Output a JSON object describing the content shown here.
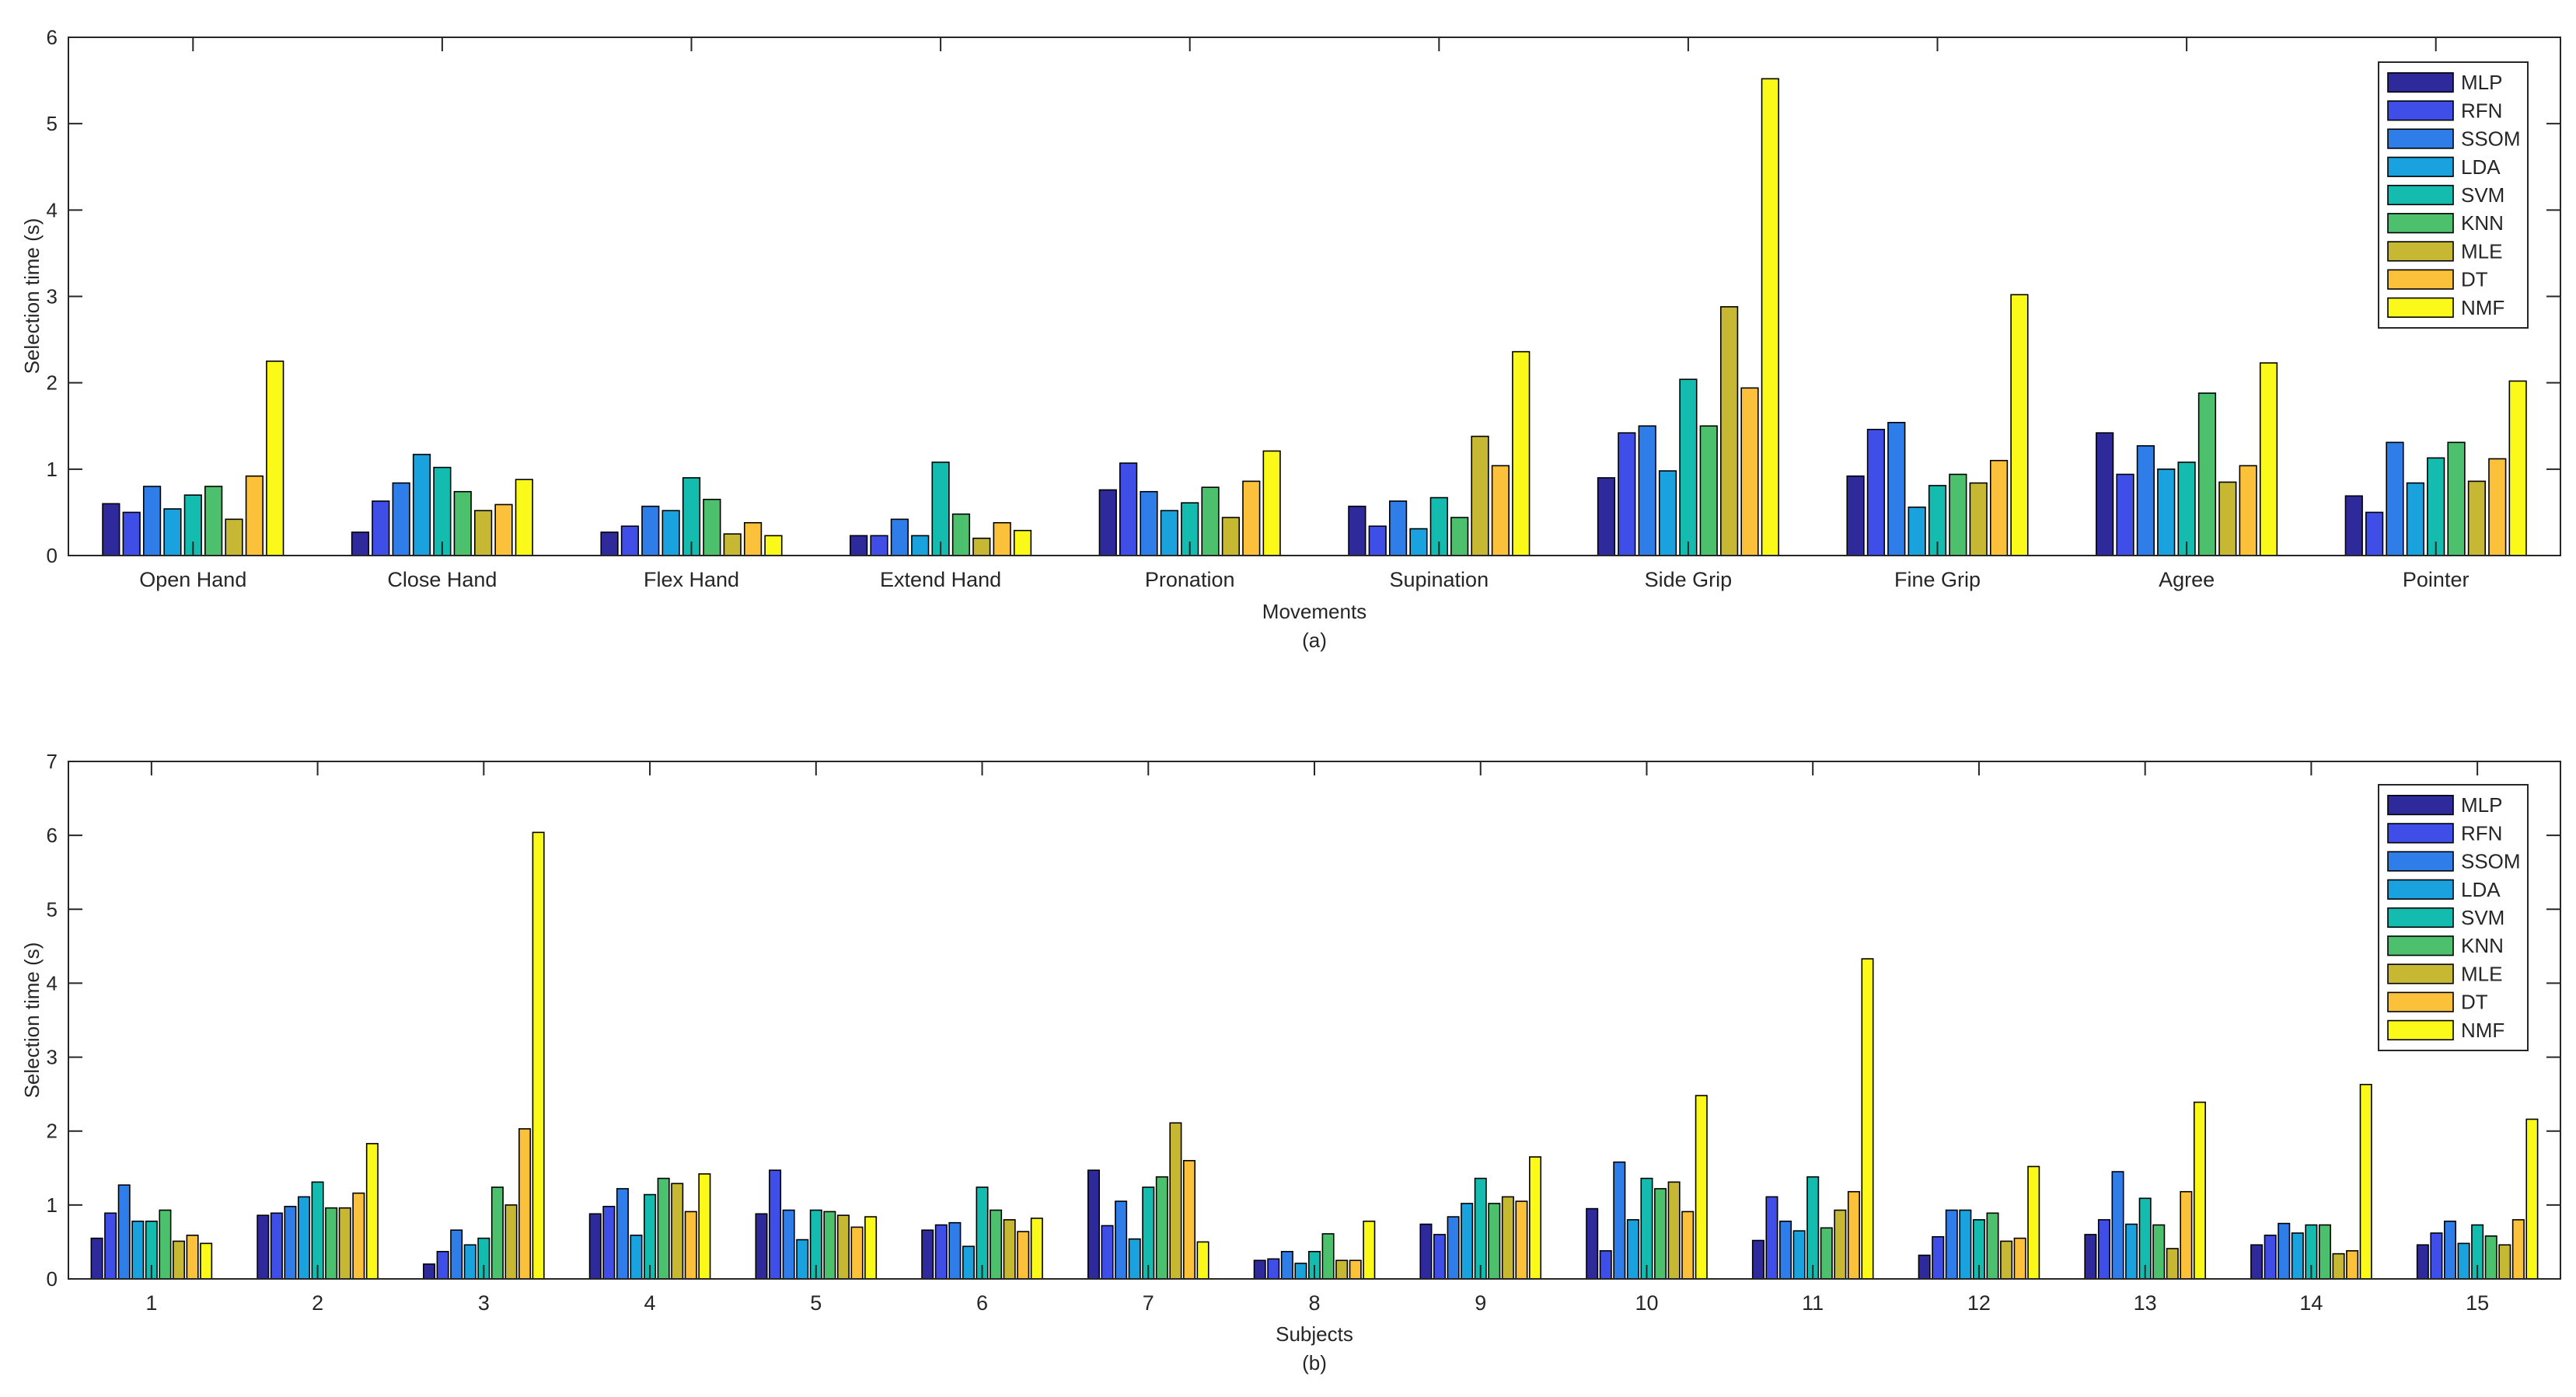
{
  "legend_colors": [
    "#2e2a9c",
    "#3f4ee6",
    "#2f7de8",
    "#1aa2de",
    "#14bcb0",
    "#4cc06c",
    "#c6b833",
    "#fbc13a",
    "#fbf91a"
  ],
  "chart_data": [
    {
      "type": "bar",
      "panel_label": "(a)",
      "xlabel": "Movements",
      "ylabel": "Selection time (s)",
      "ylim": [
        0,
        6
      ],
      "yticks": [
        0,
        1,
        2,
        3,
        4,
        5,
        6
      ],
      "legend_position": "top-right",
      "categories": [
        "Open Hand",
        "Close Hand",
        "Flex Hand",
        "Extend Hand",
        "Pronation",
        "Supination",
        "Side Grip",
        "Fine Grip",
        "Agree",
        "Pointer"
      ],
      "series": [
        {
          "name": "MLP",
          "values": [
            0.6,
            0.27,
            0.27,
            0.23,
            0.76,
            0.57,
            0.9,
            0.92,
            1.42,
            0.69
          ]
        },
        {
          "name": "RFN",
          "values": [
            0.5,
            0.63,
            0.34,
            0.23,
            1.07,
            0.34,
            1.42,
            1.46,
            0.94,
            0.5
          ]
        },
        {
          "name": "SSOM",
          "values": [
            0.8,
            0.84,
            0.57,
            0.42,
            0.74,
            0.63,
            1.5,
            1.54,
            1.27,
            1.31
          ]
        },
        {
          "name": "LDA",
          "values": [
            0.54,
            1.17,
            0.52,
            0.23,
            0.52,
            0.31,
            0.98,
            0.56,
            1.0,
            0.84
          ]
        },
        {
          "name": "SVM",
          "values": [
            0.7,
            1.02,
            0.9,
            1.08,
            0.61,
            0.67,
            2.04,
            0.81,
            1.08,
            1.13
          ]
        },
        {
          "name": "KNN",
          "values": [
            0.8,
            0.74,
            0.65,
            0.48,
            0.79,
            0.44,
            1.5,
            0.94,
            1.88,
            1.31
          ]
        },
        {
          "name": "MLE",
          "values": [
            0.42,
            0.52,
            0.25,
            0.2,
            0.44,
            1.38,
            2.88,
            0.84,
            0.85,
            0.86
          ]
        },
        {
          "name": "DT",
          "values": [
            0.92,
            0.59,
            0.38,
            0.38,
            0.86,
            1.04,
            1.94,
            1.1,
            1.04,
            1.12
          ]
        },
        {
          "name": "NMF",
          "values": [
            2.25,
            0.88,
            0.23,
            0.29,
            1.21,
            2.36,
            5.52,
            3.02,
            2.23,
            2.02
          ]
        }
      ]
    },
    {
      "type": "bar",
      "panel_label": "(b)",
      "xlabel": "Subjects",
      "ylabel": "Selection time (s)",
      "ylim": [
        0,
        7
      ],
      "yticks": [
        0,
        1,
        2,
        3,
        4,
        5,
        6,
        7
      ],
      "legend_position": "top-right",
      "categories": [
        "1",
        "2",
        "3",
        "4",
        "5",
        "6",
        "7",
        "8",
        "9",
        "10",
        "11",
        "12",
        "13",
        "14",
        "15"
      ],
      "series": [
        {
          "name": "MLP",
          "values": [
            0.55,
            0.86,
            0.2,
            0.88,
            0.88,
            0.66,
            1.47,
            0.25,
            0.74,
            0.95,
            0.52,
            0.32,
            0.6,
            0.46,
            0.46
          ]
        },
        {
          "name": "RFN",
          "values": [
            0.89,
            0.89,
            0.37,
            0.98,
            1.47,
            0.73,
            0.72,
            0.27,
            0.6,
            0.38,
            1.11,
            0.57,
            0.8,
            0.59,
            0.62
          ]
        },
        {
          "name": "SSOM",
          "values": [
            1.27,
            0.98,
            0.66,
            1.22,
            0.93,
            0.76,
            1.05,
            0.37,
            0.84,
            1.58,
            0.78,
            0.93,
            1.45,
            0.75,
            0.78
          ]
        },
        {
          "name": "LDA",
          "values": [
            0.78,
            1.11,
            0.46,
            0.59,
            0.53,
            0.44,
            0.54,
            0.21,
            1.02,
            0.8,
            0.65,
            0.93,
            0.74,
            0.62,
            0.48
          ]
        },
        {
          "name": "SVM",
          "values": [
            0.78,
            1.31,
            0.55,
            1.14,
            0.93,
            1.24,
            1.24,
            0.37,
            1.36,
            1.36,
            1.38,
            0.8,
            1.09,
            0.73,
            0.73
          ]
        },
        {
          "name": "KNN",
          "values": [
            0.93,
            0.96,
            1.24,
            1.36,
            0.91,
            0.93,
            1.38,
            0.61,
            1.02,
            1.22,
            0.69,
            0.89,
            0.73,
            0.73,
            0.58
          ]
        },
        {
          "name": "MLE",
          "values": [
            0.51,
            0.96,
            1.0,
            1.29,
            0.86,
            0.8,
            2.11,
            0.25,
            1.11,
            1.31,
            0.93,
            0.51,
            0.41,
            0.34,
            0.46
          ]
        },
        {
          "name": "DT",
          "values": [
            0.59,
            1.16,
            2.03,
            0.91,
            0.7,
            0.64,
            1.6,
            0.25,
            1.05,
            0.91,
            1.18,
            0.55,
            1.18,
            0.38,
            0.8
          ]
        },
        {
          "name": "NMF",
          "values": [
            0.48,
            1.83,
            6.04,
            1.42,
            0.84,
            0.82,
            0.5,
            0.78,
            1.65,
            2.48,
            4.33,
            1.52,
            2.39,
            2.63,
            2.16
          ]
        }
      ]
    }
  ]
}
